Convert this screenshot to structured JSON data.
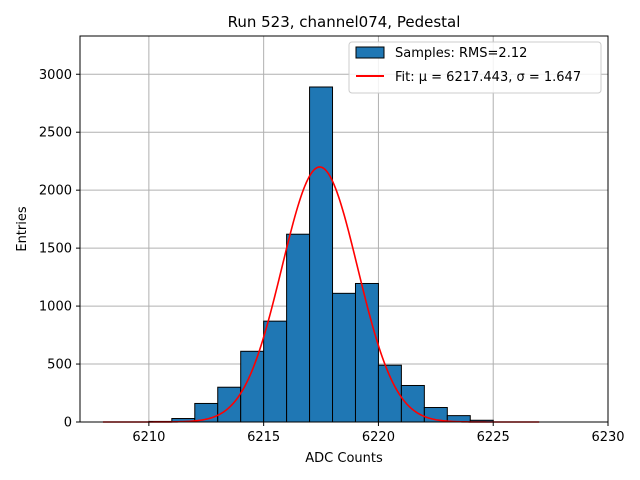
{
  "chart_data": {
    "type": "bar",
    "title": "Run 523, channel074, Pedestal",
    "xlabel": "ADC Counts",
    "ylabel": "Entries",
    "xlim": [
      6207,
      6230
    ],
    "ylim": [
      0,
      3330
    ],
    "xticks": [
      6210,
      6215,
      6220,
      6225,
      6230
    ],
    "yticks": [
      0,
      500,
      1000,
      1500,
      2000,
      2500,
      3000
    ],
    "grid": true,
    "legend_position": "top-right",
    "bin_width": 1,
    "bins": [
      {
        "x0": 6210,
        "value": 5
      },
      {
        "x0": 6211,
        "value": 30
      },
      {
        "x0": 6212,
        "value": 160
      },
      {
        "x0": 6213,
        "value": 300
      },
      {
        "x0": 6214,
        "value": 610
      },
      {
        "x0": 6215,
        "value": 870
      },
      {
        "x0": 6216,
        "value": 1620
      },
      {
        "x0": 6217,
        "value": 2890
      },
      {
        "x0": 6218,
        "value": 1110
      },
      {
        "x0": 6219,
        "value": 1195
      },
      {
        "x0": 6220,
        "value": 490
      },
      {
        "x0": 6221,
        "value": 315
      },
      {
        "x0": 6222,
        "value": 125
      },
      {
        "x0": 6223,
        "value": 55
      },
      {
        "x0": 6224,
        "value": 15
      }
    ],
    "fit": {
      "mu": 6217.443,
      "sigma": 1.647,
      "amplitude": 2200,
      "x_range": [
        6208,
        6227
      ]
    },
    "series": [
      {
        "name": "Samples: RMS=2.12",
        "kind": "histogram",
        "color": "#1f77b4"
      },
      {
        "name": "Fit: μ = 6217.443, σ = 1.647",
        "kind": "line",
        "color": "#ff0000"
      }
    ]
  }
}
